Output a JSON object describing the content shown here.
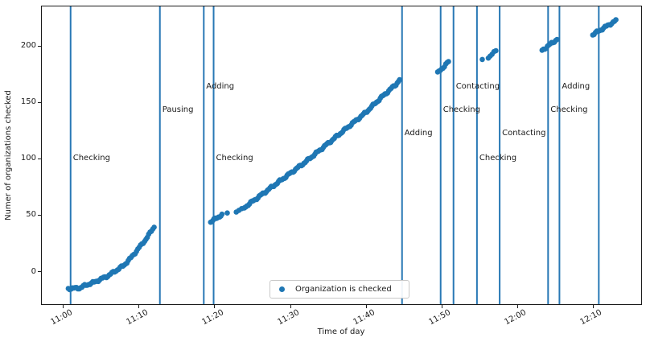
{
  "chart_data": {
    "type": "scatter",
    "title": "",
    "xlabel": "Time of day",
    "ylabel": "Numer of organizations checked",
    "x_unit": "minutes after 11:00",
    "xlim": [
      -2.8,
      76.4
    ],
    "ylim": [
      -28.8,
      235
    ],
    "grid": false,
    "marker_color": "#1f77b4",
    "vline_color": "#2878b5",
    "spine_color": "#1a1a1a",
    "x_ticks": [
      {
        "t": 0,
        "label": "11:00"
      },
      {
        "t": 10,
        "label": "11:10"
      },
      {
        "t": 20,
        "label": "11:20"
      },
      {
        "t": 30,
        "label": "11:30"
      },
      {
        "t": 40,
        "label": "11:40"
      },
      {
        "t": 50,
        "label": "11:50"
      },
      {
        "t": 60,
        "label": "12:00"
      },
      {
        "t": 70,
        "label": "12:10"
      }
    ],
    "y_ticks": [
      0,
      50,
      100,
      150,
      200
    ],
    "legend": {
      "label": "Organization is checked",
      "position": "lower center"
    },
    "series": [
      {
        "name": "Organization is checked",
        "segments": [
          {
            "name": "run-1",
            "step": 0.18,
            "anchors": [
              [
                0.7,
                -15
              ],
              [
                2.2,
                -14.5
              ],
              [
                3,
                -12
              ],
              [
                4,
                -9.7
              ],
              [
                5,
                -6.6
              ],
              [
                6,
                -3.5
              ],
              [
                7,
                1
              ],
              [
                8,
                5.3
              ],
              [
                9,
                12.4
              ],
              [
                10,
                20.8
              ],
              [
                11,
                29.1
              ],
              [
                12.2,
                41.5
              ]
            ]
          },
          {
            "name": "run-2-start",
            "step": 0.15,
            "anchors": [
              [
                19.5,
                44
              ],
              [
                21.0,
                50.5
              ]
            ]
          },
          {
            "name": "run-2-dot",
            "step": 1,
            "anchors": [
              [
                21.7,
                52
              ]
            ]
          },
          {
            "name": "run-2-ramp",
            "step": 0.35,
            "anchors": [
              [
                22.9,
                53.5
              ],
              [
                24.0,
                56.5
              ]
            ]
          },
          {
            "name": "run-2-main",
            "step": 0.16,
            "anchors": [
              [
                24.0,
                57
              ],
              [
                26,
                67
              ],
              [
                28,
                77
              ],
              [
                30,
                87
              ],
              [
                32,
                97
              ],
              [
                34,
                108
              ],
              [
                36,
                119
              ],
              [
                38,
                130
              ],
              [
                40,
                141
              ],
              [
                42,
                154
              ],
              [
                44,
                166
              ],
              [
                44.6,
                171
              ]
            ]
          },
          {
            "name": "run-3",
            "step": 0.18,
            "anchors": [
              [
                49.5,
                176
              ],
              [
                51.1,
                187
              ]
            ]
          },
          {
            "name": "run-4a",
            "step": 1,
            "anchors": [
              [
                55.4,
                188
              ]
            ]
          },
          {
            "name": "run-4b",
            "step": 0.25,
            "anchors": [
              [
                56.2,
                190
              ],
              [
                57.2,
                195.5
              ]
            ]
          },
          {
            "name": "run-5",
            "step": 0.18,
            "anchors": [
              [
                63.3,
                196
              ],
              [
                65.4,
                206.5
              ]
            ]
          },
          {
            "name": "run-6",
            "step": 0.18,
            "anchors": [
              [
                70.0,
                210
              ],
              [
                73.2,
                223
              ]
            ]
          }
        ]
      }
    ],
    "vlines": [
      {
        "t": 1.0,
        "label": "Checking",
        "label_v": 100
      },
      {
        "t": 12.8,
        "label": "Pausing",
        "label_v": 143
      },
      {
        "t": 18.6,
        "label": "Adding",
        "label_v": 164
      },
      {
        "t": 19.9,
        "label": "Checking",
        "label_v": 100
      },
      {
        "t": 44.8,
        "label": "Adding",
        "label_v": 122
      },
      {
        "t": 49.9,
        "label": "Checking",
        "label_v": 143
      },
      {
        "t": 51.6,
        "label": "Contacting",
        "label_v": 164
      },
      {
        "t": 54.7,
        "label": "Checking",
        "label_v": 100
      },
      {
        "t": 57.7,
        "label": "Contacting",
        "label_v": 122
      },
      {
        "t": 64.1,
        "label": "Checking",
        "label_v": 143
      },
      {
        "t": 65.6,
        "label": "Adding",
        "label_v": 164
      },
      {
        "t": 70.8,
        "label": "",
        "label_v": null
      }
    ]
  }
}
